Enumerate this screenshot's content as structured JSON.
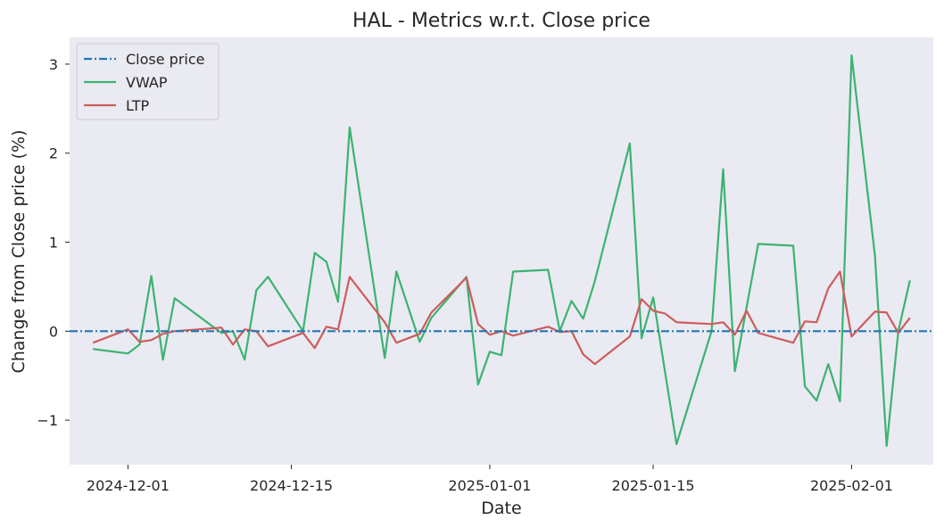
{
  "chart_data": {
    "type": "line",
    "title": "HAL - Metrics w.r.t. Close price",
    "xlabel": "Date",
    "ylabel": "Change from Close price (%)",
    "xlim": [
      "2024-11-26",
      "2025-02-08"
    ],
    "ylim": [
      -1.5,
      3.3
    ],
    "x_ticks": [
      "2024-12-01",
      "2024-12-15",
      "2025-01-01",
      "2025-01-15",
      "2025-02-01"
    ],
    "y_ticks": [
      -1,
      0,
      1,
      2,
      3
    ],
    "y_tick_labels": [
      "−1",
      "0",
      "1",
      "2",
      "3"
    ],
    "grid": false,
    "legend_position": "top-left",
    "background": "#eaeaf2",
    "series": [
      {
        "name": "Close price",
        "color": "#1f77b4",
        "style": "dashdot",
        "points": [
          [
            "2024-11-26",
            0
          ],
          [
            "2024-12-01",
            0
          ],
          [
            "2025-02-05",
            0
          ],
          [
            "2025-02-08",
            0
          ]
        ]
      },
      {
        "name": "VWAP",
        "color": "#3cb371",
        "style": "solid",
        "points": [
          [
            "2024-11-28",
            -0.2
          ],
          [
            "2024-12-01",
            -0.25
          ],
          [
            "2024-12-02",
            -0.15
          ],
          [
            "2024-12-03",
            0.62
          ],
          [
            "2024-12-04",
            -0.32
          ],
          [
            "2024-12-05",
            0.37
          ],
          [
            "2024-12-09",
            -0.02
          ],
          [
            "2024-12-10",
            0.0
          ],
          [
            "2024-12-11",
            -0.32
          ],
          [
            "2024-12-12",
            0.46
          ],
          [
            "2024-12-13",
            0.61
          ],
          [
            "2024-12-16",
            0.0
          ],
          [
            "2024-12-17",
            0.88
          ],
          [
            "2024-12-18",
            0.78
          ],
          [
            "2024-12-19",
            0.33
          ],
          [
            "2024-12-20",
            2.29
          ],
          [
            "2024-12-23",
            -0.3
          ],
          [
            "2024-12-24",
            0.67
          ],
          [
            "2024-12-26",
            -0.12
          ],
          [
            "2024-12-27",
            0.15
          ],
          [
            "2024-12-30",
            0.61
          ],
          [
            "2024-12-31",
            -0.6
          ],
          [
            "2025-01-01",
            -0.23
          ],
          [
            "2025-01-02",
            -0.27
          ],
          [
            "2025-01-03",
            0.67
          ],
          [
            "2025-01-06",
            0.69
          ],
          [
            "2025-01-07",
            0.0
          ],
          [
            "2025-01-08",
            0.34
          ],
          [
            "2025-01-09",
            0.14
          ],
          [
            "2025-01-10",
            0.56
          ],
          [
            "2025-01-13",
            2.11
          ],
          [
            "2025-01-14",
            -0.08
          ],
          [
            "2025-01-15",
            0.38
          ],
          [
            "2025-01-17",
            -1.27
          ],
          [
            "2025-01-20",
            0.0
          ],
          [
            "2025-01-21",
            1.82
          ],
          [
            "2025-01-22",
            -0.45
          ],
          [
            "2025-01-24",
            0.98
          ],
          [
            "2025-01-27",
            0.96
          ],
          [
            "2025-01-28",
            -0.62
          ],
          [
            "2025-01-29",
            -0.78
          ],
          [
            "2025-01-30",
            -0.37
          ],
          [
            "2025-01-31",
            -0.79
          ],
          [
            "2025-02-01",
            3.1
          ],
          [
            "2025-02-03",
            0.85
          ],
          [
            "2025-02-04",
            -1.29
          ],
          [
            "2025-02-05",
            0.0
          ],
          [
            "2025-02-06",
            0.57
          ]
        ]
      },
      {
        "name": "LTP",
        "color": "#cd5c5c",
        "style": "solid",
        "points": [
          [
            "2024-11-28",
            -0.13
          ],
          [
            "2024-12-01",
            0.02
          ],
          [
            "2024-12-02",
            -0.12
          ],
          [
            "2024-12-03",
            -0.1
          ],
          [
            "2024-12-04",
            -0.03
          ],
          [
            "2024-12-05",
            0.0
          ],
          [
            "2024-12-09",
            0.04
          ],
          [
            "2024-12-10",
            -0.15
          ],
          [
            "2024-12-11",
            0.02
          ],
          [
            "2024-12-12",
            0.0
          ],
          [
            "2024-12-13",
            -0.17
          ],
          [
            "2024-12-16",
            -0.02
          ],
          [
            "2024-12-17",
            -0.19
          ],
          [
            "2024-12-18",
            0.05
          ],
          [
            "2024-12-19",
            0.02
          ],
          [
            "2024-12-20",
            0.61
          ],
          [
            "2024-12-23",
            0.1
          ],
          [
            "2024-12-24",
            -0.13
          ],
          [
            "2024-12-26",
            -0.03
          ],
          [
            "2024-12-27",
            0.21
          ],
          [
            "2024-12-30",
            0.6
          ],
          [
            "2024-12-31",
            0.08
          ],
          [
            "2025-01-01",
            -0.04
          ],
          [
            "2025-01-02",
            0.0
          ],
          [
            "2025-01-03",
            -0.05
          ],
          [
            "2025-01-06",
            0.05
          ],
          [
            "2025-01-07",
            -0.01
          ],
          [
            "2025-01-08",
            0.0
          ],
          [
            "2025-01-09",
            -0.26
          ],
          [
            "2025-01-10",
            -0.37
          ],
          [
            "2025-01-13",
            -0.06
          ],
          [
            "2025-01-14",
            0.36
          ],
          [
            "2025-01-15",
            0.23
          ],
          [
            "2025-01-16",
            0.2
          ],
          [
            "2025-01-17",
            0.1
          ],
          [
            "2025-01-20",
            0.08
          ],
          [
            "2025-01-21",
            0.1
          ],
          [
            "2025-01-22",
            -0.04
          ],
          [
            "2025-01-23",
            0.23
          ],
          [
            "2025-01-24",
            -0.02
          ],
          [
            "2025-01-27",
            -0.13
          ],
          [
            "2025-01-28",
            0.11
          ],
          [
            "2025-01-29",
            0.1
          ],
          [
            "2025-01-30",
            0.48
          ],
          [
            "2025-01-31",
            0.67
          ],
          [
            "2025-02-01",
            -0.06
          ],
          [
            "2025-02-03",
            0.22
          ],
          [
            "2025-02-04",
            0.21
          ],
          [
            "2025-02-05",
            -0.02
          ],
          [
            "2025-02-06",
            0.15
          ]
        ]
      }
    ]
  }
}
